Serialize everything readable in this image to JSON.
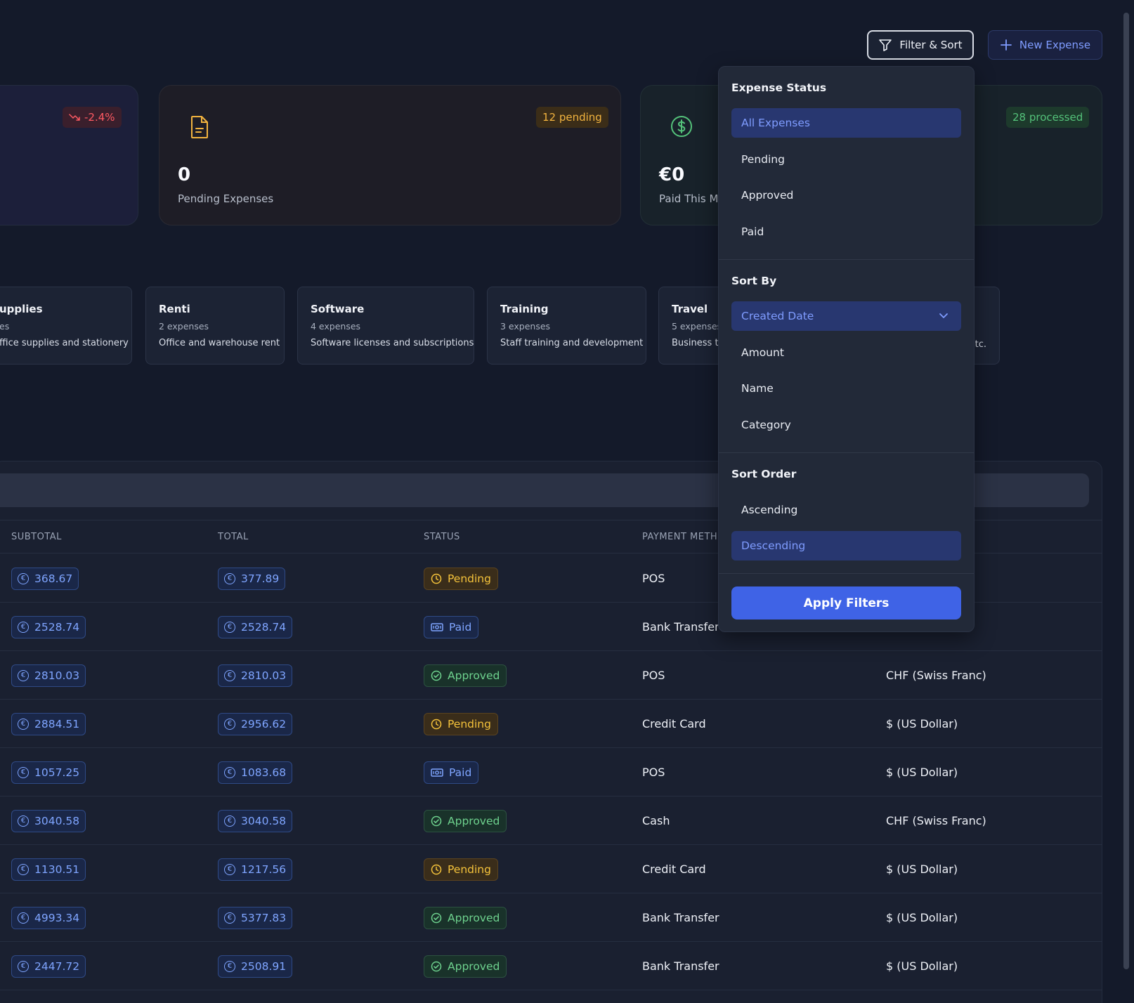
{
  "toolbar": {
    "filter_label": "Filter & Sort",
    "new_label": "New Expense"
  },
  "stats": [
    {
      "badge": "-2.4%"
    },
    {
      "badge": "12 pending",
      "value": "0",
      "label": "Pending Expenses",
      "icon": "document-icon"
    },
    {
      "badge": "28 processed",
      "value": "€0",
      "label": "Paid This Mo",
      "icon": "dollar-circle-icon"
    }
  ],
  "categories": [
    {
      "title": "upplies",
      "count": "es",
      "desc": "ffice supplies and stationery"
    },
    {
      "title": "Renti",
      "count": "2 expenses",
      "desc": "Office and warehouse rent"
    },
    {
      "title": "Software",
      "count": "4 expenses",
      "desc": "Software licenses and subscriptions"
    },
    {
      "title": "Training",
      "count": "3 expenses",
      "desc": "Staff training and development"
    },
    {
      "title": "Travel",
      "count": "5 expenses",
      "desc": "Business tr",
      "tail": "tc."
    }
  ],
  "table": {
    "headers": [
      "SUBTOTAL",
      "TOTAL",
      "STATUS",
      "PAYMENT METH"
    ],
    "rows": [
      {
        "subtotal": "368.67",
        "total": "377.89",
        "status": "Pending",
        "payment": "POS",
        "currency": ""
      },
      {
        "subtotal": "2528.74",
        "total": "2528.74",
        "status": "Paid",
        "payment": "Bank Transfer",
        "currency": ""
      },
      {
        "subtotal": "2810.03",
        "total": "2810.03",
        "status": "Approved",
        "payment": "POS",
        "currency": "CHF (Swiss Franc)"
      },
      {
        "subtotal": "2884.51",
        "total": "2956.62",
        "status": "Pending",
        "payment": "Credit Card",
        "currency": "$ (US Dollar)"
      },
      {
        "subtotal": "1057.25",
        "total": "1083.68",
        "status": "Paid",
        "payment": "POS",
        "currency": "$ (US Dollar)"
      },
      {
        "subtotal": "3040.58",
        "total": "3040.58",
        "status": "Approved",
        "payment": "Cash",
        "currency": "CHF (Swiss Franc)"
      },
      {
        "subtotal": "1130.51",
        "total": "1217.56",
        "status": "Pending",
        "payment": "Credit Card",
        "currency": "$ (US Dollar)"
      },
      {
        "subtotal": "4993.34",
        "total": "5377.83",
        "status": "Approved",
        "payment": "Bank Transfer",
        "currency": "$ (US Dollar)"
      },
      {
        "subtotal": "2447.72",
        "total": "2508.91",
        "status": "Approved",
        "payment": "Bank Transfer",
        "currency": "$ (US Dollar)"
      }
    ]
  },
  "filter_dropdown": {
    "status_heading": "Expense Status",
    "status_options": [
      "All Expenses",
      "Pending",
      "Approved",
      "Paid"
    ],
    "status_selected": "All Expenses",
    "sort_heading": "Sort By",
    "sort_selected": "Created Date",
    "sort_options": [
      "Amount",
      "Name",
      "Category"
    ],
    "order_heading": "Sort Order",
    "order_options": [
      "Ascending",
      "Descending"
    ],
    "order_selected": "Descending",
    "apply_label": "Apply Filters"
  },
  "colors": {
    "accent": "#3f63e6",
    "pending": "#f5c33b",
    "paid": "#7fa5ff",
    "approved": "#6ed28e",
    "negative": "#ff5a63"
  }
}
